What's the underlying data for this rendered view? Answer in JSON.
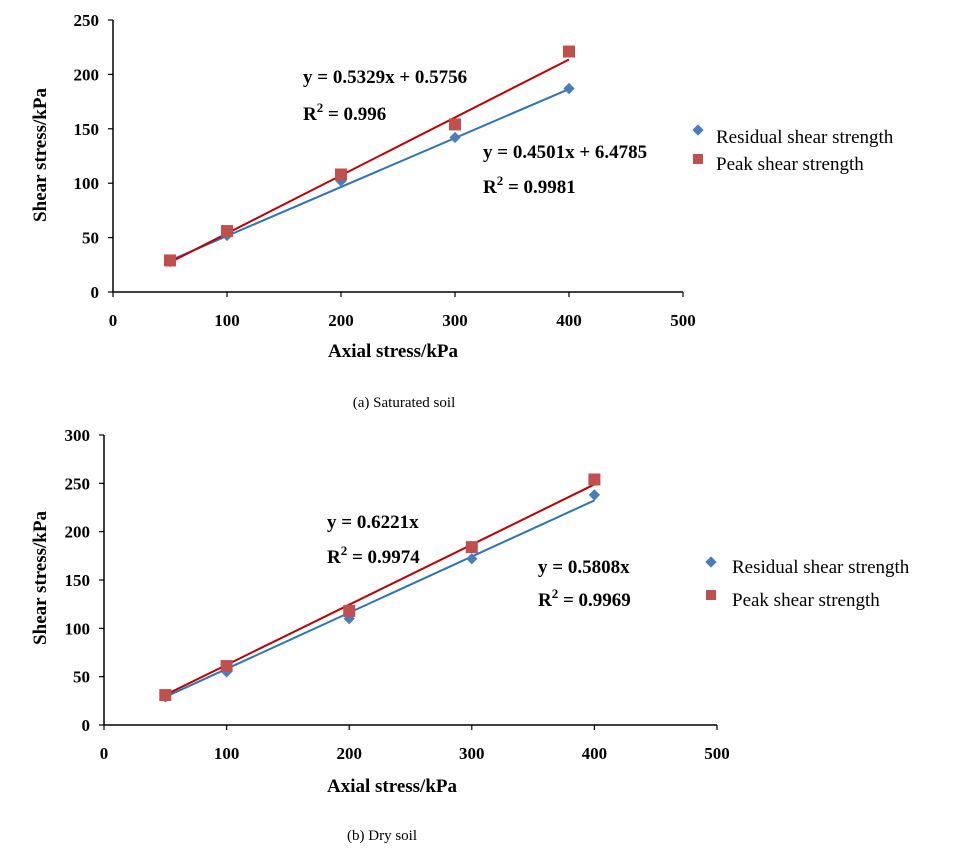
{
  "chart_data": [
    {
      "type": "scatter",
      "caption": "(a) Saturated soil",
      "xlabel": "Axial stress/kPa",
      "ylabel": "Shear stress/kPa",
      "xlim": [
        0,
        500
      ],
      "ylim": [
        0,
        250
      ],
      "x_ticks": [
        "0",
        "100",
        "200",
        "300",
        "400",
        "500"
      ],
      "y_ticks": [
        "0",
        "50",
        "100",
        "150",
        "200",
        "250"
      ],
      "grid": false,
      "legend_position": "right",
      "series": [
        {
          "name": "Residual shear strength",
          "marker": "diamond",
          "color": "#4a7ebb",
          "line_color": "#2e75b6",
          "x": [
            50,
            100,
            200,
            300,
            400
          ],
          "values": [
            28,
            52,
            102,
            142,
            187
          ],
          "trendline": {
            "slope": 0.4501,
            "intercept": 6.4785,
            "x_range": [
              50,
              400
            ]
          },
          "equation": "y = 0.4501x + 6.4785",
          "r2_prefix": "R",
          "r2_sup": "2",
          "r2_value": " = 0.9981"
        },
        {
          "name": "Peak shear strength",
          "marker": "square",
          "color": "#c0504d",
          "line_color": "#c00000",
          "x": [
            50,
            100,
            200,
            300,
            400
          ],
          "values": [
            29,
            56,
            108,
            154,
            221
          ],
          "trendline": {
            "slope": 0.5329,
            "intercept": 0.5756,
            "x_range": [
              50,
              400
            ]
          },
          "equation": "y = 0.5329x + 0.5756",
          "r2_prefix": "R",
          "r2_sup": "2",
          "r2_value": " = 0.996"
        }
      ]
    },
    {
      "type": "scatter",
      "caption": "(b) Dry soil",
      "xlabel": "Axial stress/kPa",
      "ylabel": "Shear stress/kPa",
      "xlim": [
        0,
        500
      ],
      "ylim": [
        0,
        300
      ],
      "x_ticks": [
        "0",
        "100",
        "200",
        "300",
        "400",
        "500"
      ],
      "y_ticks": [
        "0",
        "50",
        "100",
        "150",
        "200",
        "250",
        "300"
      ],
      "grid": false,
      "legend_position": "right",
      "series": [
        {
          "name": "Residual shear strength",
          "marker": "diamond",
          "color": "#4a7ebb",
          "line_color": "#2e75b6",
          "x": [
            50,
            100,
            200,
            300,
            400
          ],
          "values": [
            29,
            55,
            110,
            172,
            238
          ],
          "trendline": {
            "slope": 0.5808,
            "intercept": 0,
            "x_range": [
              50,
              400
            ]
          },
          "equation": "y = 0.5808x",
          "r2_prefix": "R",
          "r2_sup": "2",
          "r2_value": " = 0.9969"
        },
        {
          "name": "Peak shear strength",
          "marker": "square",
          "color": "#c0504d",
          "line_color": "#c00000",
          "x": [
            50,
            100,
            200,
            300,
            400
          ],
          "values": [
            31,
            61,
            118,
            184,
            254
          ],
          "trendline": {
            "slope": 0.6221,
            "intercept": 0,
            "x_range": [
              50,
              400
            ]
          },
          "equation": "y = 0.6221x",
          "r2_prefix": "R",
          "r2_sup": "2",
          "r2_value": " = 0.9974"
        }
      ]
    }
  ]
}
